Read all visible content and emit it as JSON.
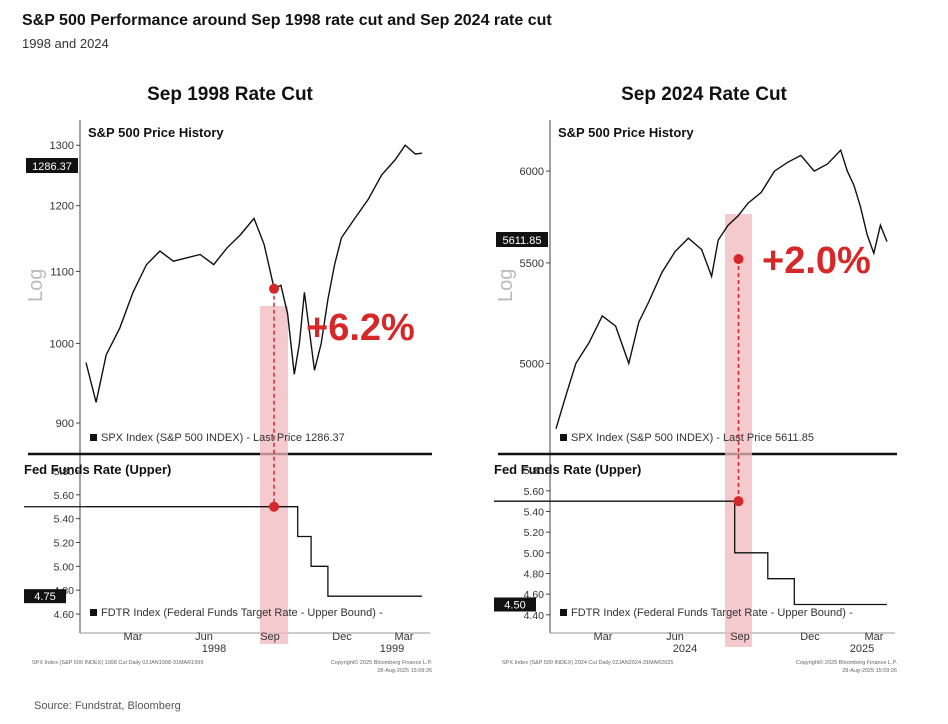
{
  "title": "S&P 500 Performance around Sep 1998 rate cut and Sep 2024 rate cut",
  "subtitle": "1998 and 2024",
  "source": "Source: Fundstrat, Bloomberg",
  "colors": {
    "line": "#111111",
    "highlight": "#f2b8bf",
    "marker": "#d62828",
    "annotation": "#d62828",
    "price_tag_bg": "#111111"
  },
  "chart_data": [
    {
      "type": "line",
      "panel_title": "Sep 1998 Rate Cut",
      "top_title": "S&P 500 Price History",
      "y_axis_label": "Log",
      "y_scale": "log",
      "y_ticks": [
        "900",
        "1000",
        "1100",
        "1200",
        "1300"
      ],
      "ylim": [
        880,
        1330
      ],
      "last_price_tag": "1286.37",
      "price_legend": "SPX Index (S&P 500 INDEX) - Last Price 1286.37",
      "annotation": "+6.2%",
      "price_series": {
        "x": [
          0,
          0.03,
          0.06,
          0.1,
          0.14,
          0.18,
          0.22,
          0.26,
          0.3,
          0.34,
          0.38,
          0.42,
          0.46,
          0.5,
          0.53,
          0.56,
          0.58,
          0.6,
          0.62,
          0.635,
          0.65,
          0.68,
          0.7,
          0.72,
          0.74,
          0.76,
          0.8,
          0.84,
          0.88,
          0.92,
          0.95,
          0.98,
          1.0
        ],
        "y": [
          975,
          925,
          985,
          1020,
          1070,
          1110,
          1130,
          1115,
          1120,
          1125,
          1110,
          1135,
          1155,
          1180,
          1140,
          1075,
          1080,
          1040,
          960,
          1000,
          1070,
          965,
          1000,
          1060,
          1110,
          1150,
          1180,
          1210,
          1250,
          1275,
          1300,
          1285,
          1286.37
        ]
      },
      "rate_title": "Fed Funds Rate (Upper)",
      "rate_ticks": [
        "4.60",
        "4.80",
        "5.00",
        "5.20",
        "5.40",
        "5.60",
        "5.80"
      ],
      "rate_ylim": [
        4.55,
        5.85
      ],
      "last_rate_tag": "4.75",
      "rate_legend": "FDTR Index (Federal Funds Target Rate - Upper Bound) -",
      "rate_series": {
        "x": [
          0,
          0.63,
          0.63,
          0.67,
          0.67,
          0.72,
          0.72,
          1.0
        ],
        "y": [
          5.5,
          5.5,
          5.25,
          5.25,
          5.0,
          5.0,
          4.75,
          4.75
        ]
      },
      "x_ticks": [
        "Mar",
        "Jun",
        "Sep",
        "Dec",
        "Mar"
      ],
      "x_years": [
        "1998",
        "1999"
      ],
      "cut_marker": {
        "price": 1075,
        "rate": 5.5
      },
      "footer_left": "SPX Index (S&P 500 INDEX) 1998 Cut  Daily 02JAN1998-31MAR1999",
      "footer_right_1": "Copyright© 2025 Bloomberg Finance L.P.",
      "footer_right_2": "28-Aug-2025 15:09:26"
    },
    {
      "type": "line",
      "panel_title": "Sep 2024 Rate Cut",
      "top_title": "S&P 500 Price History",
      "y_axis_label": "Log",
      "y_scale": "log",
      "y_ticks": [
        "5000",
        "5500",
        "6000"
      ],
      "ylim": [
        4650,
        6250
      ],
      "last_price_tag": "5611.85",
      "price_legend": "SPX Index (S&P 500 INDEX) - Last Price 5611.85",
      "annotation": "+2.0%",
      "price_series": {
        "x": [
          0,
          0.03,
          0.06,
          0.1,
          0.14,
          0.18,
          0.22,
          0.25,
          0.28,
          0.32,
          0.36,
          0.4,
          0.44,
          0.47,
          0.49,
          0.52,
          0.55,
          0.58,
          0.62,
          0.66,
          0.7,
          0.74,
          0.78,
          0.82,
          0.86,
          0.88,
          0.9,
          0.92,
          0.94,
          0.96,
          0.98,
          1.0
        ],
        "y": [
          4700,
          4850,
          5000,
          5100,
          5230,
          5180,
          5000,
          5200,
          5300,
          5450,
          5560,
          5630,
          5570,
          5430,
          5620,
          5700,
          5750,
          5820,
          5880,
          6000,
          6050,
          6090,
          6000,
          6040,
          6120,
          6000,
          5920,
          5800,
          5650,
          5550,
          5700,
          5611.85
        ]
      },
      "rate_title": "Fed Funds Rate (Upper)",
      "rate_ticks": [
        "4.40",
        "4.60",
        "4.80",
        "5.00",
        "5.20",
        "5.40",
        "5.60",
        "5.80"
      ],
      "rate_ylim": [
        4.35,
        5.85
      ],
      "last_rate_tag": "4.50",
      "rate_legend": "FDTR Index (Federal Funds Target Rate - Upper Bound) -",
      "rate_series": {
        "x": [
          0,
          0.54,
          0.54,
          0.64,
          0.64,
          0.72,
          0.72,
          1.0
        ],
        "y": [
          5.5,
          5.5,
          5.0,
          5.0,
          4.75,
          4.75,
          4.5,
          4.5
        ]
      },
      "x_ticks": [
        "Mar",
        "Jun",
        "Sep",
        "Dec",
        "Mar"
      ],
      "x_years": [
        "2024",
        "2025"
      ],
      "cut_marker": {
        "price": 5520,
        "rate": 5.5
      },
      "footer_left": "SPX Index (S&P 500 INDEX) 2024 Cut  Daily 02JAN2024-31MAR2025",
      "footer_right_1": "Copyright© 2025 Bloomberg Finance L.P.",
      "footer_right_2": "28-Aug-2025 15:09:26"
    }
  ]
}
